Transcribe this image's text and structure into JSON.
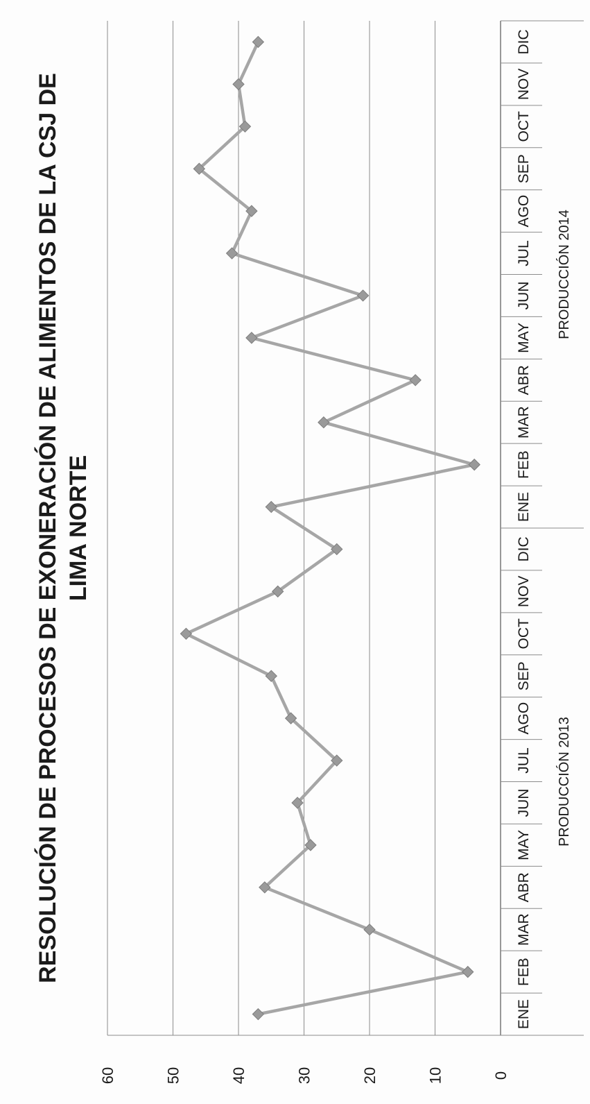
{
  "chart_data": {
    "type": "line",
    "title_line1": "RESOLUCIÓN DE PROCESOS DE EXONERACIÓN DE ALIMENTOS DE LA CSJ DE",
    "title_line2": "LIMA NORTE",
    "categories": [
      "ENE",
      "FEB",
      "MAR",
      "ABR",
      "MAY",
      "JUN",
      "JUL",
      "AGO",
      "SEP",
      "OCT",
      "NOV",
      "DIC",
      "ENE",
      "FEB",
      "MAR",
      "ABR",
      "MAY",
      "JUN",
      "JUL",
      "AGO",
      "SEP",
      "OCT",
      "NOV",
      "DIC"
    ],
    "groups": [
      {
        "label": "PRODUCCIÓN 2013",
        "start": 0,
        "end": 11
      },
      {
        "label": "PRODUCCIÓN 2014",
        "start": 12,
        "end": 23
      }
    ],
    "series": [
      {
        "values": [
          37,
          5,
          20,
          36,
          29,
          31,
          25,
          32,
          35,
          48,
          34,
          25,
          35,
          4,
          27,
          13,
          38,
          21,
          41,
          38,
          46,
          39,
          40,
          37
        ]
      }
    ],
    "ylim": [
      0,
      60
    ],
    "yticks": [
      0,
      10,
      20,
      30,
      40,
      50,
      60
    ],
    "grid": true,
    "legend": "none",
    "orientation": "rotated-90-ccw",
    "colors": {
      "line": "#a6a6a6",
      "marker": "#9a9a9a",
      "grid": "#8c8c8c",
      "axis": "#555555"
    }
  }
}
